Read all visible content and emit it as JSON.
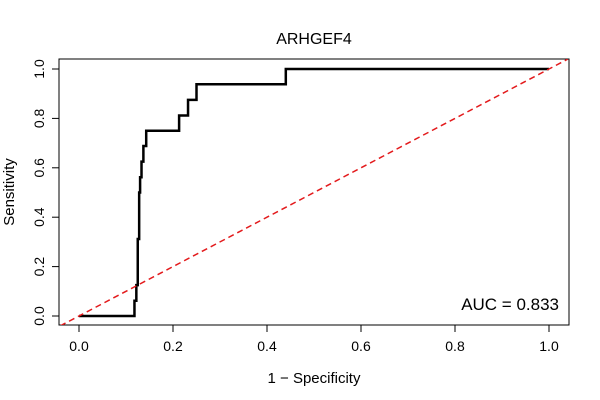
{
  "chart_data": {
    "type": "line",
    "title": "ARHGEF4",
    "xlabel": "1 − Specificity",
    "ylabel": "Sensitivity",
    "xlim": [
      0.0,
      1.0
    ],
    "ylim": [
      0.0,
      1.0
    ],
    "xticks": [
      "0.0",
      "0.2",
      "0.4",
      "0.6",
      "0.8",
      "1.0"
    ],
    "yticks": [
      "0.0",
      "0.2",
      "0.4",
      "0.6",
      "0.8",
      "1.0"
    ],
    "annotation": "AUC = 0.833",
    "grid": false,
    "series": [
      {
        "role": "roc-curve",
        "color": "#000000",
        "x": [
          0.0,
          0.118,
          0.118,
          0.122,
          0.122,
          0.125,
          0.125,
          0.128,
          0.128,
          0.13,
          0.13,
          0.133,
          0.133,
          0.137,
          0.137,
          0.143,
          0.143,
          0.213,
          0.213,
          0.232,
          0.232,
          0.25,
          0.25,
          0.44,
          0.44,
          1.0
        ],
        "y": [
          0.0,
          0.0,
          0.062,
          0.062,
          0.125,
          0.125,
          0.312,
          0.312,
          0.5,
          0.5,
          0.562,
          0.562,
          0.625,
          0.625,
          0.688,
          0.688,
          0.75,
          0.75,
          0.812,
          0.812,
          0.875,
          0.875,
          0.938,
          0.938,
          1.0,
          1.0
        ]
      },
      {
        "role": "reference-diagonal",
        "color": "#e31a1c",
        "dashed": true,
        "x": [
          -0.04,
          1.04
        ],
        "y": [
          -0.04,
          1.04
        ]
      }
    ]
  }
}
